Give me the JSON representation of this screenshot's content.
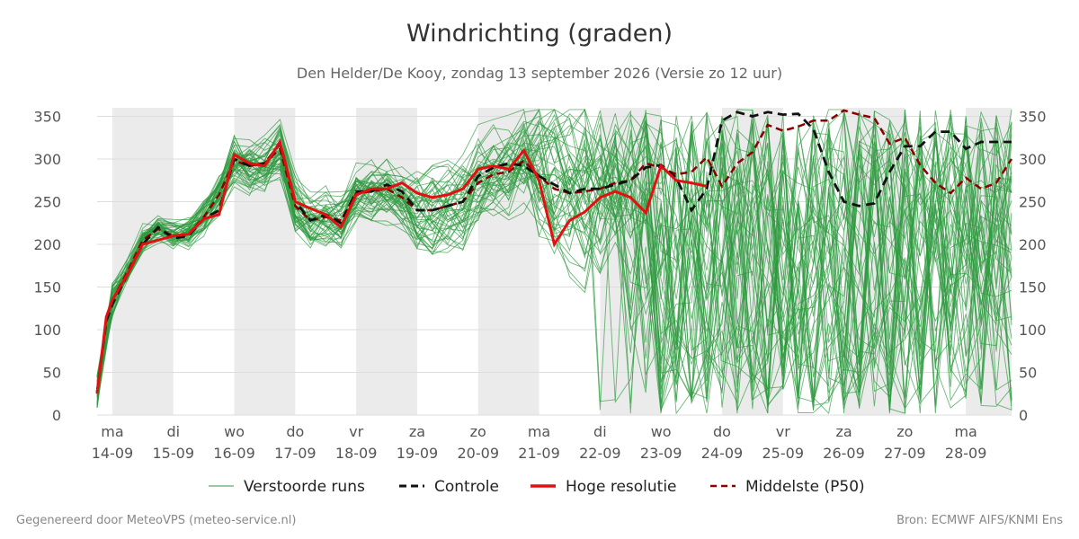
{
  "header": {
    "title": "Windrichting (graden)",
    "subtitle": "Den Helder/De Kooy, zondag 13 september 2026 (Versie zo 12 uur)"
  },
  "footer": {
    "left": "Gegenereerd door MeteoVPS (meteo-service.nl)",
    "right": "Bron: ECMWF AIFS/KNMI Ens"
  },
  "chart_data": {
    "type": "line",
    "x_unit": "days",
    "x_range": [
      -0.25,
      14.75
    ],
    "ylim": [
      0,
      360
    ],
    "yticks": [
      0,
      50,
      100,
      150,
      200,
      250,
      300,
      350
    ],
    "grid": true,
    "legend_placement": "bottom",
    "day_labels": [
      {
        "day": "ma",
        "date": "14-09"
      },
      {
        "day": "di",
        "date": "15-09"
      },
      {
        "day": "wo",
        "date": "16-09"
      },
      {
        "day": "do",
        "date": "17-09"
      },
      {
        "day": "vr",
        "date": "18-09"
      },
      {
        "day": "za",
        "date": "19-09"
      },
      {
        "day": "zo",
        "date": "20-09"
      },
      {
        "day": "ma",
        "date": "21-09"
      },
      {
        "day": "di",
        "date": "22-09"
      },
      {
        "day": "wo",
        "date": "23-09"
      },
      {
        "day": "do",
        "date": "24-09"
      },
      {
        "day": "vr",
        "date": "25-09"
      },
      {
        "day": "za",
        "date": "26-09"
      },
      {
        "day": "zo",
        "date": "27-09"
      },
      {
        "day": "ma",
        "date": "28-09"
      }
    ],
    "shaded_days": [
      0,
      2,
      4,
      6,
      8,
      10,
      12,
      14
    ],
    "colors": {
      "ensemble": "#2e9a3e",
      "control": "#111111",
      "hires": "#e11111",
      "median": "#8b0000",
      "shade": "#ebebeb",
      "grid": "#dddddd"
    },
    "legend": [
      {
        "key": "ensemble",
        "label": "Verstoorde runs"
      },
      {
        "key": "control",
        "label": "Controle"
      },
      {
        "key": "hires",
        "label": "Hoge resolutie"
      },
      {
        "key": "median",
        "label": "Middelste (P50)"
      }
    ],
    "ensemble_member_count": 50,
    "control": {
      "x": [
        -0.25,
        -0.1,
        0,
        0.25,
        0.5,
        0.75,
        1,
        1.25,
        1.5,
        1.75,
        2,
        2.25,
        2.5,
        2.75,
        3,
        3.25,
        3.5,
        3.75,
        4,
        4.25,
        4.5,
        4.75,
        5,
        5.25,
        5.5,
        5.75,
        6,
        6.25,
        6.5,
        6.75,
        7,
        7.25,
        7.5,
        7.75,
        8,
        8.25,
        8.5,
        8.75,
        9,
        9.25,
        9.5,
        9.75,
        10,
        10.25,
        10.5,
        10.75,
        11,
        11.25,
        11.5,
        11.75,
        12,
        12.25,
        12.5,
        12.75,
        13,
        13.25,
        13.5,
        13.75,
        14,
        14.25,
        14.5,
        14.75
      ],
      "y": [
        27,
        110,
        130,
        165,
        200,
        220,
        207,
        210,
        230,
        240,
        300,
        292,
        295,
        318,
        250,
        228,
        235,
        225,
        262,
        262,
        270,
        262,
        240,
        240,
        245,
        250,
        280,
        290,
        295,
        292,
        280,
        270,
        260,
        265,
        265,
        270,
        275,
        290,
        293,
        278,
        240,
        265,
        345,
        355,
        350,
        355,
        352,
        353,
        335,
        285,
        250,
        245,
        248,
        285,
        315,
        315,
        332,
        332,
        312,
        320,
        320,
        320
      ]
    },
    "hires": {
      "x": [
        -0.25,
        -0.1,
        0,
        0.25,
        0.5,
        0.75,
        1,
        1.25,
        1.5,
        1.75,
        2,
        2.25,
        2.5,
        2.75,
        3,
        3.25,
        3.5,
        3.75,
        4,
        4.25,
        4.5,
        4.75,
        5,
        5.25,
        5.5,
        5.75,
        6,
        6.25,
        6.5,
        6.75,
        7,
        7.25,
        7.5,
        7.75,
        8,
        8.25,
        8.5,
        8.75,
        9,
        9.25,
        9.5,
        9.75
      ],
      "y": [
        25,
        115,
        135,
        165,
        200,
        205,
        210,
        212,
        230,
        235,
        305,
        295,
        292,
        320,
        250,
        242,
        235,
        220,
        258,
        265,
        265,
        272,
        260,
        255,
        258,
        265,
        288,
        292,
        288,
        310,
        275,
        200,
        228,
        238,
        255,
        262,
        255,
        237,
        292,
        275,
        272,
        268
      ]
    },
    "median": {
      "x": [
        -0.25,
        -0.1,
        0,
        0.25,
        0.5,
        0.75,
        1,
        1.25,
        1.5,
        1.75,
        2,
        2.25,
        2.5,
        2.75,
        3,
        3.25,
        3.5,
        3.75,
        4,
        4.25,
        4.5,
        4.75,
        5,
        5.25,
        5.5,
        5.75,
        6,
        6.25,
        6.5,
        6.75,
        7,
        7.25,
        7.5,
        7.75,
        8,
        8.25,
        8.5,
        8.75,
        9,
        9.25,
        9.5,
        9.75,
        10,
        10.25,
        10.5,
        10.75,
        11,
        11.25,
        11.5,
        11.75,
        12,
        12.25,
        12.5,
        12.75,
        13,
        13.25,
        13.5,
        13.75,
        14,
        14.25,
        14.5,
        14.75
      ],
      "y": [
        27,
        112,
        135,
        168,
        205,
        218,
        210,
        212,
        232,
        258,
        298,
        292,
        295,
        312,
        245,
        228,
        232,
        228,
        260,
        262,
        265,
        255,
        240,
        240,
        245,
        250,
        272,
        282,
        285,
        298,
        280,
        265,
        260,
        262,
        265,
        272,
        275,
        295,
        290,
        282,
        285,
        302,
        268,
        295,
        308,
        340,
        333,
        338,
        345,
        345,
        357,
        352,
        348,
        318,
        325,
        293,
        272,
        260,
        278,
        265,
        272,
        300
      ]
    }
  }
}
